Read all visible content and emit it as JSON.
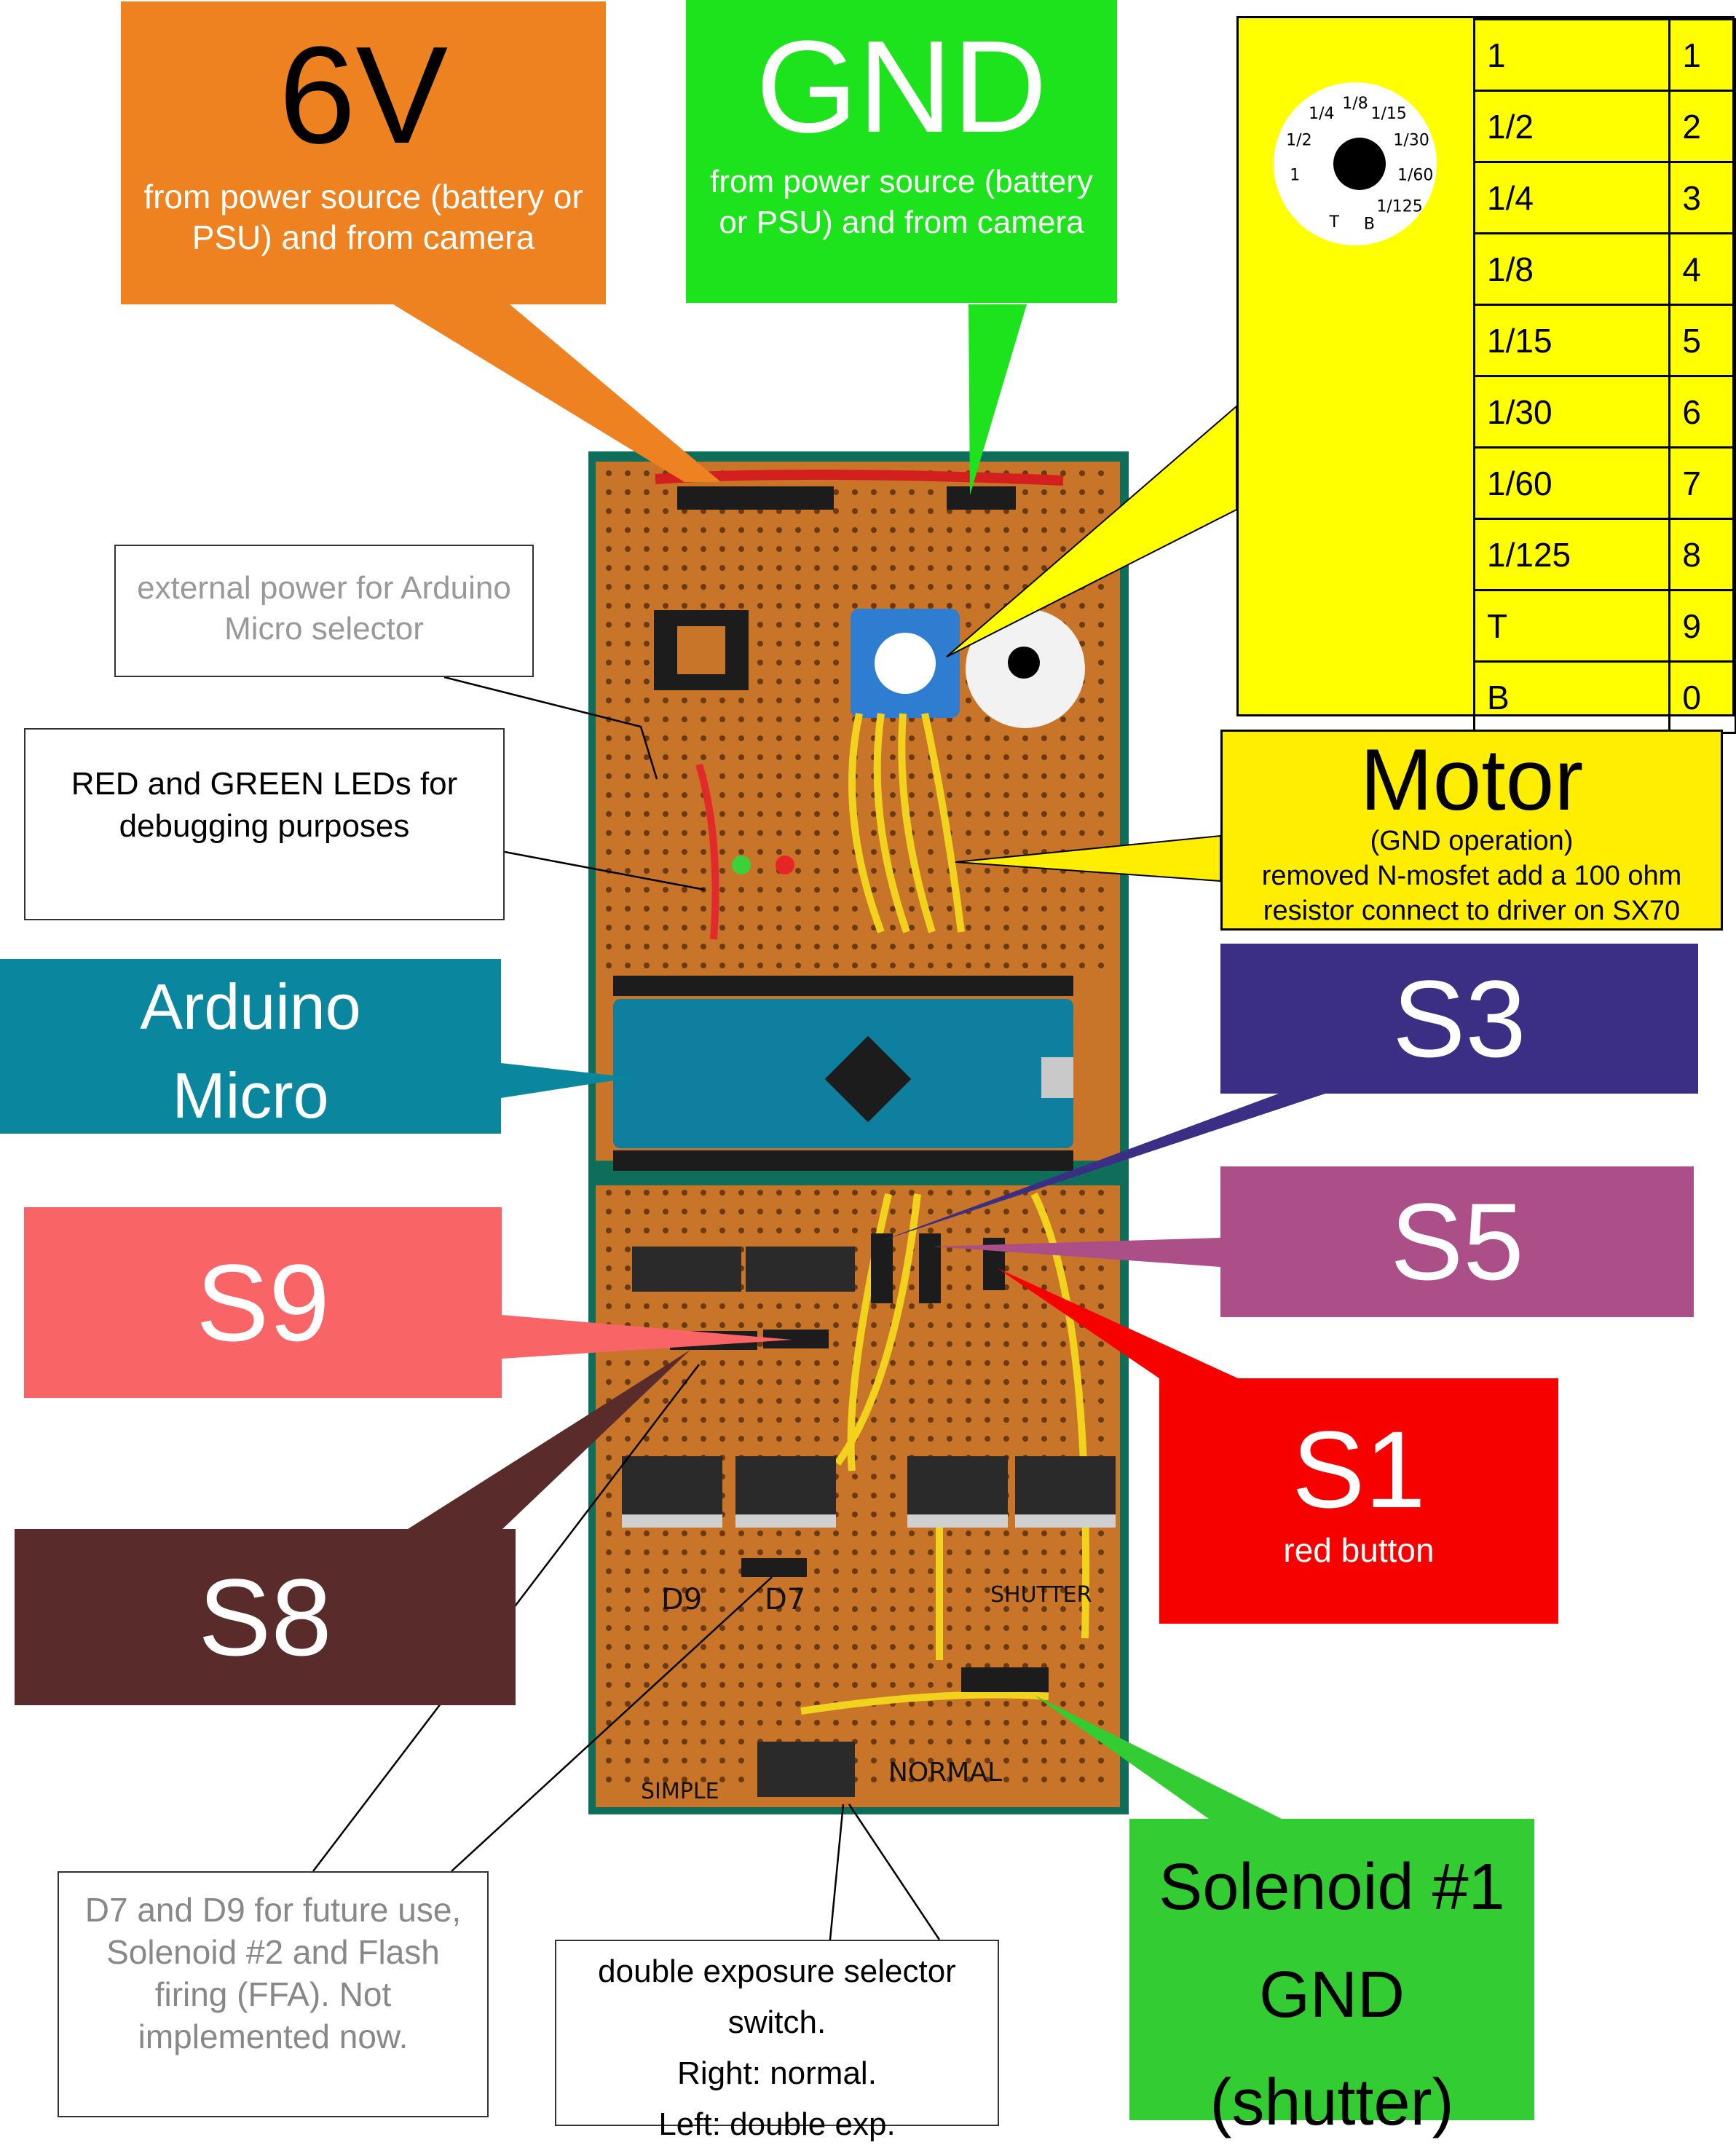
{
  "colors": {
    "six_v": "#ee8120",
    "gnd": "#1de31d",
    "dial": "#ffff00",
    "motor": "#ffee00",
    "arduino": "#0a879e",
    "s3": "#3a2f85",
    "s5": "#ac4f88",
    "s9": "#f96566",
    "s1": "#f70000",
    "s8": "#5a2b2b",
    "solenoid": "#33cc33",
    "pcb": "#c8752a"
  },
  "labels": {
    "six_v": {
      "title": "6V",
      "subtitle": "from power source (battery or PSU) and from camera"
    },
    "gnd": {
      "title": "GND",
      "subtitle": "from power source (battery or PSU) and from camera"
    },
    "ext_power": {
      "text": "external power for Arduino Micro selector"
    },
    "leds": {
      "text": "RED and GREEN LEDs for debugging purposes"
    },
    "motor": {
      "title": "Motor",
      "line1": "(GND operation)",
      "line2": "removed N-mosfet add a 100 ohm",
      "line3": "resistor connect to driver on SX70"
    },
    "arduino": {
      "line1": "Arduino",
      "line2": "Micro"
    },
    "s3": {
      "title": "S3"
    },
    "s5": {
      "title": "S5"
    },
    "s9": {
      "title": "S9"
    },
    "s1": {
      "title": "S1",
      "subtitle": "red button"
    },
    "s8": {
      "title": "S8"
    },
    "d7d9": {
      "text": "D7 and D9 for future use, Solenoid #2 and Flash firing (FFA). Not implemented now."
    },
    "double_exposure": {
      "line1": "double exposure selector",
      "line2": "switch.",
      "line3": "Right: normal.",
      "line4": "Left: double exp."
    },
    "solenoid": {
      "line1": "Solenoid #1",
      "line2": "GND",
      "line3": "(shutter)"
    }
  },
  "dial_table": [
    [
      "1",
      "1"
    ],
    [
      "1/2",
      "2"
    ],
    [
      "1/4",
      "3"
    ],
    [
      "1/8",
      "4"
    ],
    [
      "1/15",
      "5"
    ],
    [
      "1/30",
      "6"
    ],
    [
      "1/60",
      "7"
    ],
    [
      "1/125",
      "8"
    ],
    [
      "T",
      "9"
    ],
    [
      "B",
      "0"
    ]
  ],
  "dial_face": [
    "1",
    "1/2",
    "1/4",
    "1/8",
    "1/15",
    "1/30",
    "1/60",
    "1/125",
    "B",
    "T"
  ],
  "board_marks": {
    "header_labels": [
      "D9",
      "D7",
      "SHUTTER",
      "NORMAL",
      "SIMPLE"
    ]
  }
}
